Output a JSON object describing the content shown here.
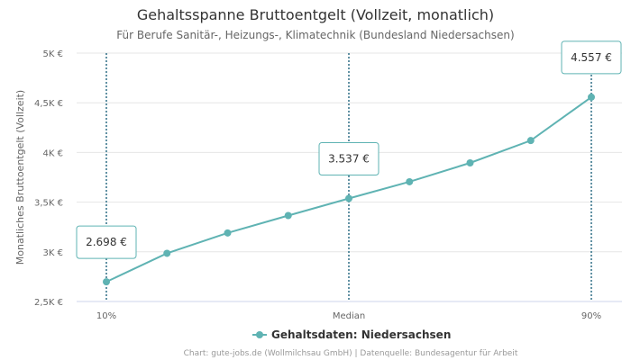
{
  "chart_data": {
    "type": "line",
    "title": "Gehaltsspanne Bruttoentgelt (Vollzeit, monatlich)",
    "subtitle": "Für Berufe Sanitär-, Heizungs-, Klimatechnik (Bundesland Niedersachsen)",
    "ylabel": "Monatliches Bruttoentgelt (Vollzeit)",
    "xlabel": "",
    "ylim": [
      2500,
      5000
    ],
    "y_ticks": [
      2500,
      3000,
      3500,
      4000,
      4500,
      5000
    ],
    "y_tick_labels": [
      "2,5K €",
      "3K €",
      "3,5K €",
      "4K €",
      "4,5K €",
      "5K €"
    ],
    "grid": true,
    "x": [
      10,
      20,
      30,
      40,
      50,
      60,
      70,
      80,
      90
    ],
    "x_ticks": [
      {
        "x": 10,
        "label": "10%"
      },
      {
        "x": 50,
        "label": "Median"
      },
      {
        "x": 90,
        "label": "90%"
      }
    ],
    "series": [
      {
        "name": "Gehaltsdaten: Niedersachsen",
        "color": "#5fb3b3",
        "values": [
          2698,
          2985,
          3190,
          3365,
          3537,
          3705,
          3895,
          4120,
          4557
        ]
      }
    ],
    "markers": [
      {
        "x": 10,
        "value": 2698,
        "label": "2.698 €"
      },
      {
        "x": 50,
        "value": 3537,
        "label": "3.537 €"
      },
      {
        "x": 90,
        "value": 4557,
        "label": "4.557 €"
      }
    ],
    "marker_line_color": "#2e6f86",
    "legend_position": "bottom-center",
    "credits": "Chart: gute-jobs.de (Wollmilchsau GmbH) | Datenquelle: Bundesagentur für Arbeit"
  }
}
